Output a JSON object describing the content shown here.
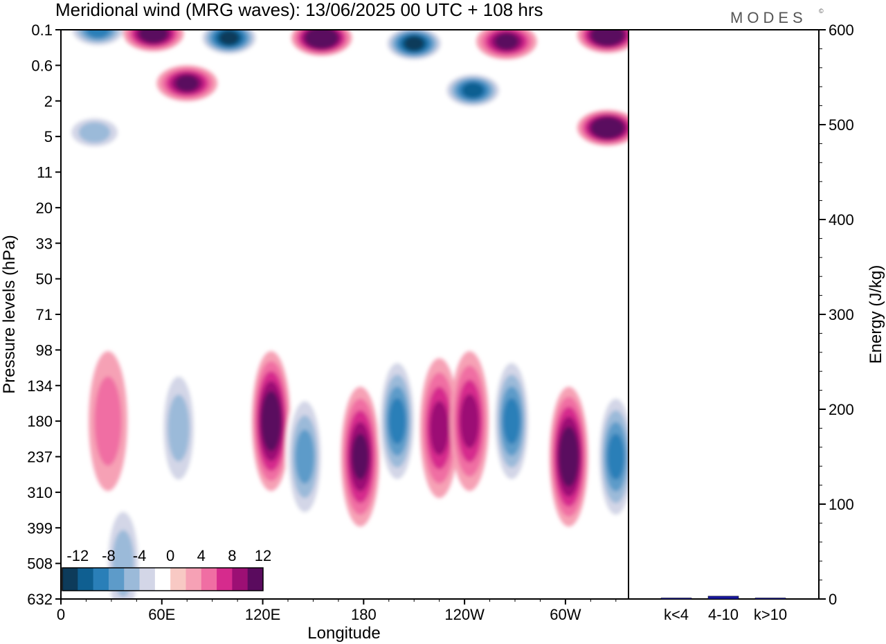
{
  "chart_data": [
    {
      "type": "heatmap",
      "title": "Meridional wind (MRG waves):  13/06/2025  00 UTC  + 108 hrs",
      "xlabel": "Longitude",
      "ylabel": "Pressure levels (hPa)",
      "x_ticks": [
        "0",
        "60E",
        "120E",
        "180",
        "120W",
        "60W"
      ],
      "x_tick_values_deg": [
        0,
        60,
        120,
        180,
        240,
        300
      ],
      "xlim_deg": [
        0,
        337.5
      ],
      "y_ticks": [
        "0.1",
        "0.6",
        "2",
        "5",
        "11",
        "20",
        "33",
        "50",
        "71",
        "98",
        "134",
        "180",
        "237",
        "310",
        "399",
        "508",
        "632"
      ],
      "colorbar": {
        "labels": [
          "-12",
          "-8",
          "-4",
          "0",
          "4",
          "8",
          "12"
        ],
        "levels": [
          -14,
          -12,
          -10,
          -8,
          -6,
          -4,
          -2,
          2,
          4,
          6,
          8,
          10,
          12,
          14
        ],
        "colors": [
          "#0d3b5a",
          "#0f5f91",
          "#2a7fb8",
          "#5d9bc9",
          "#9bbad9",
          "#d3d6e7",
          "#ffffff",
          "#f8c9c4",
          "#f6a1b5",
          "#f06ea3",
          "#d62b8d",
          "#9c0f74",
          "#5a0b5e"
        ]
      },
      "features": [
        {
          "lon": 22,
          "p": 0.1,
          "value": -10
        },
        {
          "lon": 55,
          "p": 0.12,
          "value": 12
        },
        {
          "lon": 100,
          "p": 0.15,
          "value": -14
        },
        {
          "lon": 155,
          "p": 0.15,
          "value": 14
        },
        {
          "lon": 210,
          "p": 0.2,
          "value": -14
        },
        {
          "lon": 265,
          "p": 0.18,
          "value": 10
        },
        {
          "lon": 325,
          "p": 0.13,
          "value": 14
        },
        {
          "lon": 75,
          "p": 1.1,
          "value": 10
        },
        {
          "lon": 245,
          "p": 1.4,
          "value": -12
        },
        {
          "lon": 325,
          "p": 4.0,
          "value": 14
        },
        {
          "lon": 20,
          "p": 4.5,
          "value": -6
        },
        {
          "lon": 125,
          "p": 180,
          "value": 12
        },
        {
          "lon": 145,
          "p": 237,
          "value": -8
        },
        {
          "lon": 178,
          "p": 237,
          "value": 10
        },
        {
          "lon": 200,
          "p": 180,
          "value": -10
        },
        {
          "lon": 225,
          "p": 190,
          "value": 8
        },
        {
          "lon": 243,
          "p": 180,
          "value": 8
        },
        {
          "lon": 268,
          "p": 180,
          "value": -10
        },
        {
          "lon": 302,
          "p": 237,
          "value": 12
        },
        {
          "lon": 330,
          "p": 237,
          "value": -10
        },
        {
          "lon": 70,
          "p": 190,
          "value": -6
        },
        {
          "lon": 28,
          "p": 180,
          "value": 4
        },
        {
          "lon": 37,
          "p": 508,
          "value": -6
        }
      ]
    },
    {
      "type": "bar",
      "categories": [
        "k<4",
        "4-10",
        "k>10"
      ],
      "values": [
        0,
        3,
        0
      ],
      "ylabel": "Energy (J/kg)",
      "y_ticks": [
        "0",
        "100",
        "200",
        "300",
        "400",
        "500",
        "600"
      ],
      "ylim": [
        0,
        600
      ],
      "color": "#1a1a9e"
    }
  ],
  "branding": {
    "logo_text": "MODES"
  }
}
